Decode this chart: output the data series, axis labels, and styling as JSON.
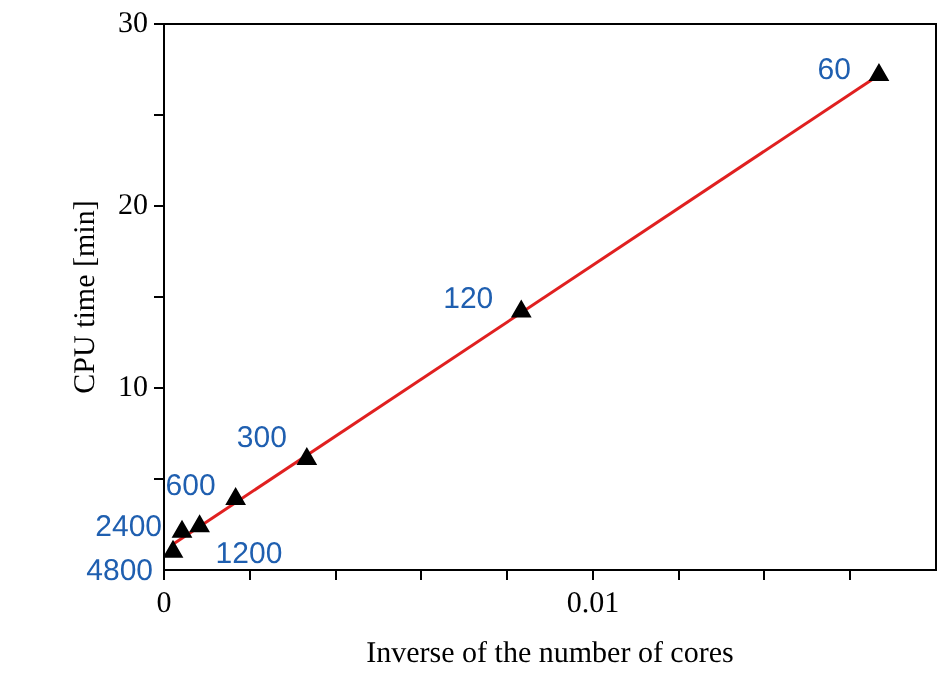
{
  "chart_data": {
    "type": "scatter",
    "xlabel": "Inverse of the number of cores",
    "ylabel": "CPU time [min]",
    "xlim": [
      0,
      0.018
    ],
    "ylim": [
      0,
      30
    ],
    "xticks": [
      0,
      {
        "value": 0.002,
        "label": null
      },
      {
        "value": 0.004,
        "label": null
      },
      {
        "value": 0.006,
        "label": null
      },
      {
        "value": 0.008,
        "label": null
      },
      0.01,
      {
        "value": 0.012,
        "label": null
      },
      {
        "value": 0.014,
        "label": null
      },
      {
        "value": 0.016,
        "label": null
      }
    ],
    "yticks": [
      {
        "value": 5,
        "label": null
      },
      10,
      {
        "value": 15,
        "label": null
      },
      20,
      {
        "value": 25,
        "label": null
      },
      30
    ],
    "grid": false,
    "legend": false,
    "marker": "triangle",
    "series": [
      {
        "color": "#000000",
        "x": [
          0.01667,
          0.00833,
          0.00333,
          0.00167,
          0.00083,
          0.00042,
          0.00021
        ],
        "values": [
          27.2,
          14.2,
          6.1,
          3.9,
          2.4,
          2.1,
          1.0
        ]
      },
      {
        "type": "line",
        "color": "#e02020",
        "marker": "none",
        "line_style": "solid",
        "x": [
          0.0002,
          0.01667
        ],
        "values": [
          1.4,
          27.2
        ]
      }
    ],
    "annotations": [
      {
        "text": "60",
        "x": 0.01667,
        "y": 27.2
      },
      {
        "text": "120",
        "x": 0.00833,
        "y": 14.2
      },
      {
        "text": "300",
        "x": 0.00333,
        "y": 6.1
      },
      {
        "text": "600",
        "x": 0.00167,
        "y": 3.9
      },
      {
        "text": "1200",
        "x": 0.00083,
        "y": 2.4
      },
      {
        "text": "2400",
        "x": 0.00042,
        "y": 2.1
      },
      {
        "text": "4800",
        "x": 0.00021,
        "y": 1.0
      }
    ]
  }
}
